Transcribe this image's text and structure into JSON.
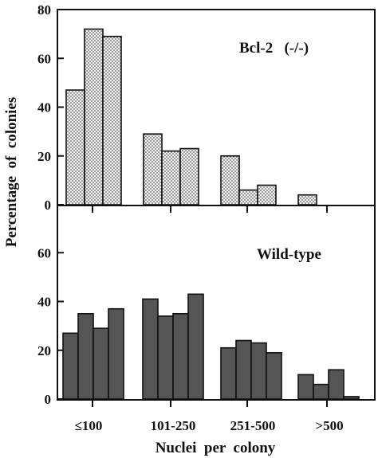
{
  "chart_data": [
    {
      "type": "bar",
      "panel_label": "Bcl-2   (-/-)",
      "categories": [
        "≤100",
        "101-250",
        "251-500",
        ">500"
      ],
      "series_per_category": [
        [
          47,
          72,
          69
        ],
        [
          29,
          22,
          23
        ],
        [
          20,
          6,
          8
        ],
        [
          4
        ]
      ],
      "ylim": [
        0,
        80
      ],
      "yticks": [
        "0",
        "20",
        "40",
        "60",
        "80"
      ],
      "bar_fill": "dotted",
      "xlabel": "",
      "ylabel": "Percentage  of  colonies"
    },
    {
      "type": "bar",
      "panel_label": "Wild-type",
      "categories": [
        "≤100",
        "101-250",
        "251-500",
        ">500"
      ],
      "series_per_category": [
        [
          27,
          35,
          29,
          37
        ],
        [
          41,
          34,
          35,
          43
        ],
        [
          21,
          24,
          23,
          19
        ],
        [
          10,
          6,
          12,
          1
        ]
      ],
      "ylim": [
        0,
        80
      ],
      "yticks": [
        "0",
        "20",
        "40",
        "60"
      ],
      "bar_fill": "dark",
      "xlabel": "Nuclei  per  colony",
      "ylabel": "Percentage  of  colonies"
    }
  ],
  "colors": {
    "dark_bar": "#555555",
    "dotted_bar_bg": "#f4f4f4",
    "axis": "#111111"
  },
  "x_tick_labels": [
    "≤100",
    "101-250",
    "251-500",
    ">500"
  ],
  "y_axis_title": "Percentage  of  colonies",
  "x_axis_title": "Nuclei  per  colony"
}
